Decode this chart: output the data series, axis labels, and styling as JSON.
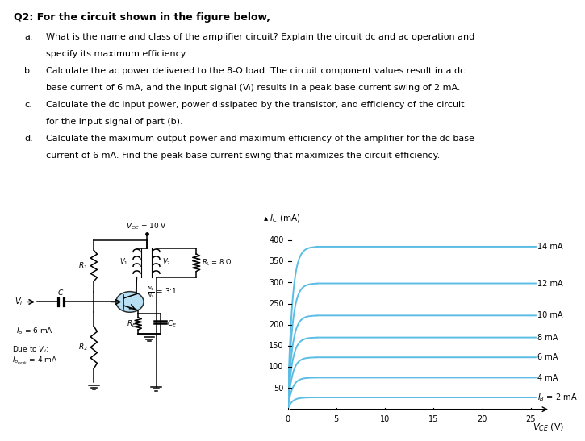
{
  "title": "Q2: For the circuit shown in the figure below,",
  "q_a_letter": "a.",
  "q_a_text": "  What is the name and class of the amplifier circuit? Explain the circuit dc and ac operation and\n      specify its maximum efficiency.",
  "q_b_letter": "b.",
  "q_b_text": "  Calculate the ac power delivered to the 8-Ω load. The circuit component values result in a dc\n      base current of 6 mA, and the input signal (Vᵢ) results in a peak base current swing of 2 mA.",
  "q_c_letter": "c.",
  "q_c_text": "  Calculate the dc input power, power dissipated by the transistor, and efficiency of the circuit\n      for the input signal of part (b).",
  "q_d_letter": "d.",
  "q_d_text": "  Calculate the maximum output power and maximum efficiency of the amplifier for the dc base\n      current of 6 mA. Find the peak base current swing that maximizes the circuit efficiency.",
  "graph_curve_color": "#5bbde4",
  "graph_xlim": [
    0,
    27
  ],
  "graph_ylim": [
    0,
    430
  ],
  "graph_xticks": [
    0,
    5,
    10,
    15,
    20,
    25
  ],
  "graph_yticks": [
    50,
    100,
    150,
    200,
    250,
    300,
    350,
    400
  ],
  "curve_ic_flat": [
    28,
    75,
    123,
    170,
    222,
    298,
    385
  ],
  "curve_labels": [
    "$I_B$ = 2 mA",
    "4 mA",
    "6 mA",
    "8 mA",
    "10 mA",
    "12 mA",
    "14 mA"
  ],
  "transistor_fill": "#a8d8f0",
  "bg_color": "#ffffff",
  "circuit_color": "#000000"
}
